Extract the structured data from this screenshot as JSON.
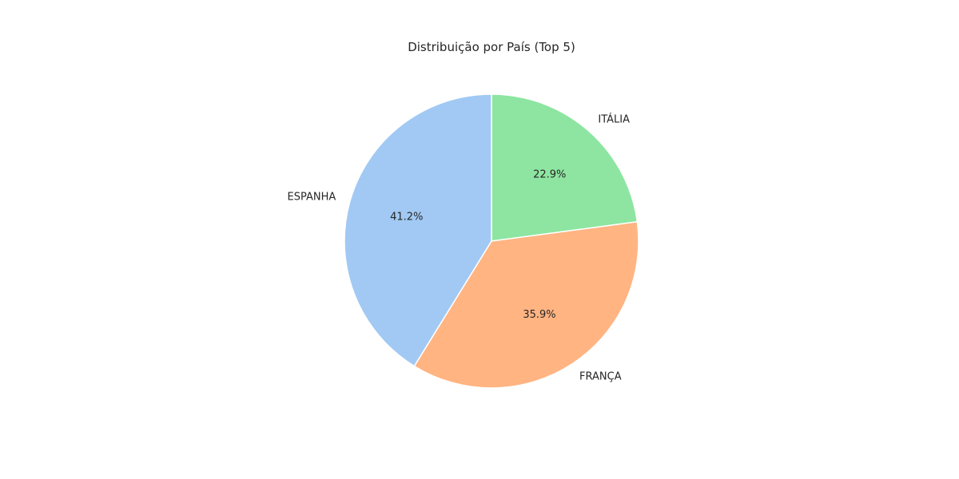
{
  "chart_data": {
    "type": "pie",
    "title": "Distribuição por País (Top 5)",
    "categories": [
      "ITÁLIA",
      "FRANÇA",
      "ESPANHA"
    ],
    "values": [
      22.9,
      35.9,
      41.2
    ],
    "percent_labels": [
      "22.9%",
      "35.9%",
      "41.2%"
    ],
    "colors": [
      "#8de5a1",
      "#ffb482",
      "#a1c9f4"
    ],
    "start_angle": "top (12 o'clock)",
    "direction": "clockwise"
  }
}
